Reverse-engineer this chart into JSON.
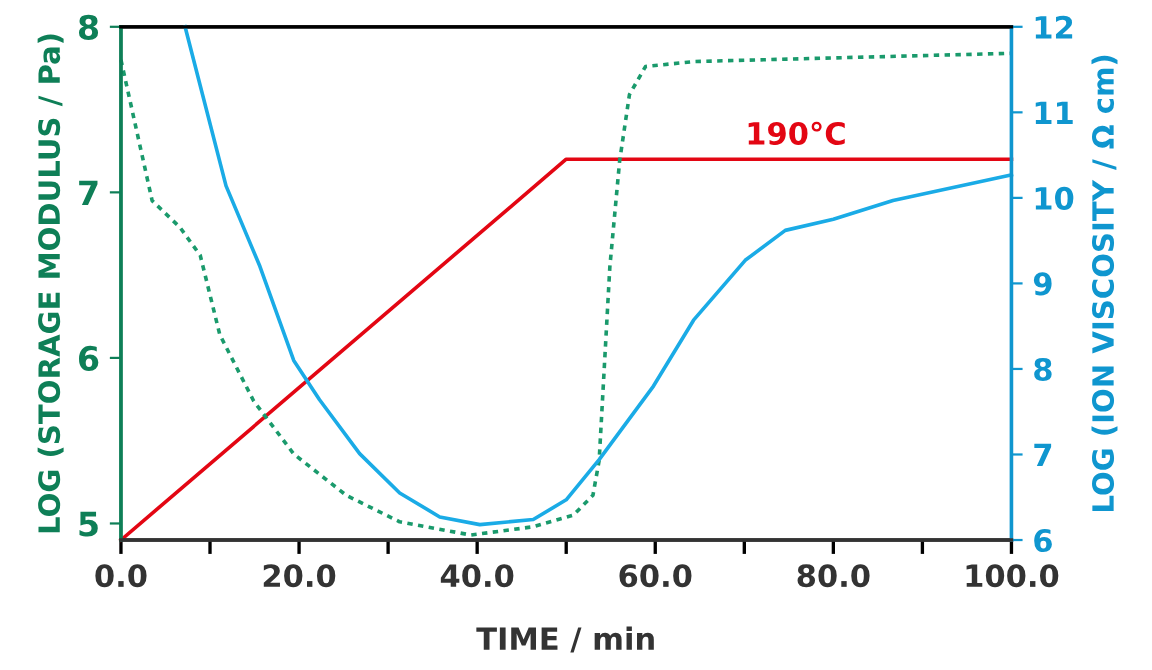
{
  "chart_data": {
    "type": "line",
    "xlabel": "TIME / min",
    "ylabel": "LOG (STORAGE MODULUS / Pa)",
    "y2label": "LOG (ION VISCOSITY / Ω cm)",
    "xlim": [
      0,
      100
    ],
    "xticks": [
      {
        "value": 0,
        "label": "0.0"
      },
      {
        "value": 10,
        "label": null
      },
      {
        "value": 20,
        "label": "20.0"
      },
      {
        "value": 30,
        "label": null
      },
      {
        "value": 40,
        "label": "40.0"
      },
      {
        "value": 50,
        "label": null
      },
      {
        "value": 60,
        "label": "60.0"
      },
      {
        "value": 70,
        "label": null
      },
      {
        "value": 80,
        "label": "80.0"
      },
      {
        "value": 90,
        "label": null
      },
      {
        "value": 100,
        "label": "100.0"
      }
    ],
    "ylim": [
      4.9,
      8
    ],
    "yticks": [
      5,
      6,
      7,
      8
    ],
    "y2lim": [
      6,
      12
    ],
    "y2ticks": [
      6,
      7,
      8,
      9,
      10,
      11,
      12
    ],
    "grid": false,
    "legend": false,
    "marker": "none",
    "series": [
      {
        "color": "#e30613",
        "line_style": "solid",
        "x": [
          0,
          50,
          100
        ],
        "values": [
          4.9,
          7.2,
          7.2
        ]
      },
      {
        "color": "#1a9a6c",
        "line_style": "dotted",
        "x": [
          0,
          3.5,
          6.6,
          8.9,
          11.1,
          14.9,
          19.4,
          25.3,
          31.3,
          39.3,
          46.3,
          50.8,
          53,
          53.7,
          54.9,
          56,
          57.1,
          58.9,
          64.3,
          100
        ],
        "values": [
          7.8,
          6.95,
          6.79,
          6.62,
          6.14,
          5.74,
          5.42,
          5.17,
          5.01,
          4.93,
          4.98,
          5.05,
          5.17,
          5.38,
          6.55,
          7.19,
          7.59,
          7.76,
          7.79,
          7.84
        ]
      },
      {
        "color": "#1aabe6",
        "line_style": "solid",
        "axis": "y2",
        "x": [
          7.2,
          11.8,
          15.6,
          19.4,
          22.3,
          26.8,
          31.3,
          35.8,
          40.3,
          46.3,
          50,
          53.7,
          59.8,
          64.3,
          70.1,
          74.6,
          80,
          86.7,
          100
        ],
        "values": [
          12,
          10.14,
          9.2,
          8.1,
          7.64,
          7.01,
          6.55,
          6.27,
          6.18,
          6.24,
          6.47,
          6.94,
          7.8,
          8.57,
          9.27,
          9.62,
          9.75,
          9.97,
          10.27
        ]
      }
    ],
    "annotations": [
      {
        "text": "190°C",
        "x": 75.8,
        "y": 7.2
      }
    ]
  }
}
